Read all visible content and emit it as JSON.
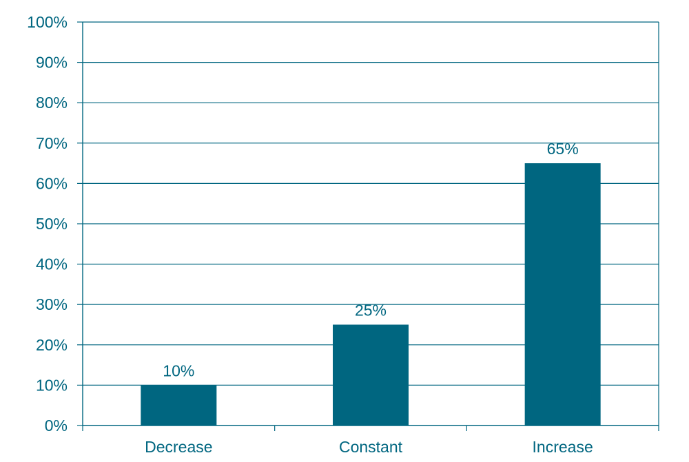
{
  "colors": {
    "bar": "#006680",
    "text": "#006680",
    "axis": "#006680",
    "grid": "#006680",
    "background": "#ffffff"
  },
  "chart_data": {
    "type": "bar",
    "title": "",
    "xlabel": "",
    "ylabel": "",
    "categories": [
      "Decrease",
      "Constant",
      "Increase"
    ],
    "values": [
      10,
      25,
      65
    ],
    "value_labels": [
      "10%",
      "25%",
      "65%"
    ],
    "ylim": [
      0,
      100
    ],
    "y_ticks": [
      0,
      10,
      20,
      30,
      40,
      50,
      60,
      70,
      80,
      90,
      100
    ],
    "y_tick_labels": [
      "0%",
      "10%",
      "20%",
      "30%",
      "40%",
      "50%",
      "60%",
      "70%",
      "80%",
      "90%",
      "100%"
    ],
    "grid": true,
    "legend": "none",
    "unit": "%"
  }
}
